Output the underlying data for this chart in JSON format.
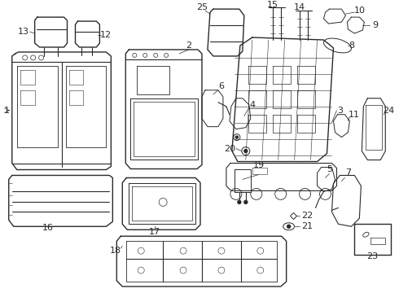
{
  "bg_color": "#ffffff",
  "line_color": "#2a2a2a",
  "fig_width": 4.9,
  "fig_height": 3.6,
  "dpi": 100
}
